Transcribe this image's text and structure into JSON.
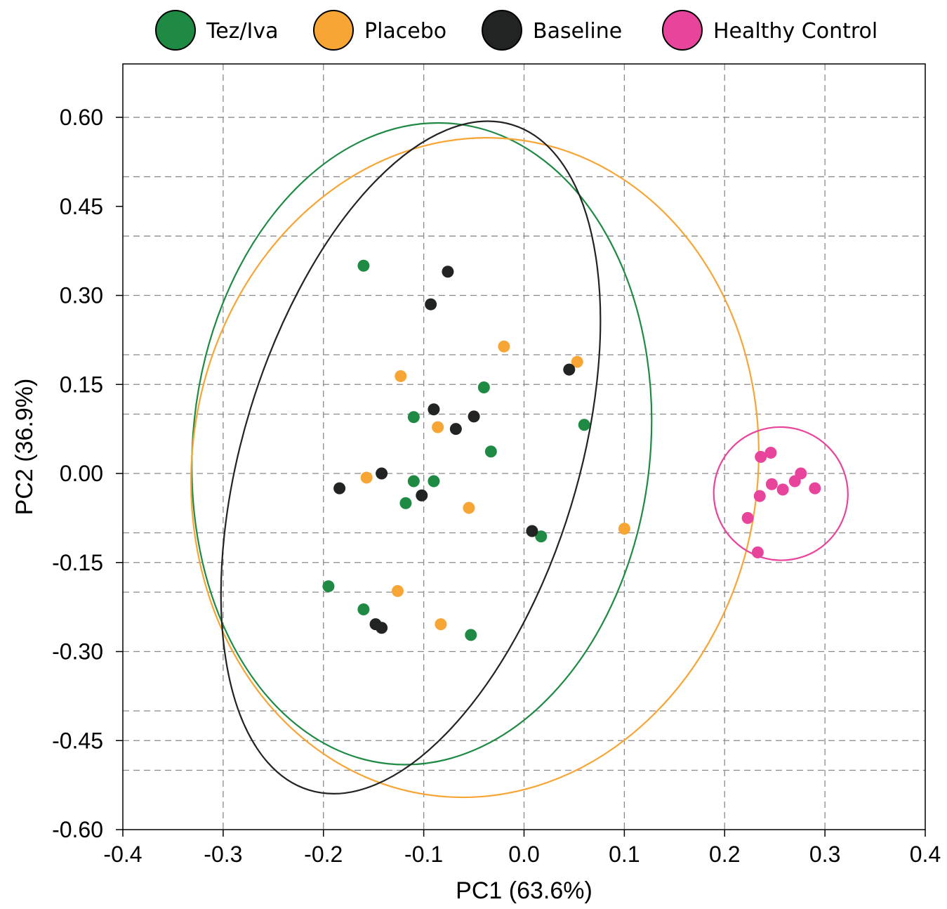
{
  "chart_data": {
    "type": "scatter",
    "xlabel": "PC1 (63.6%)",
    "ylabel": "PC2 (36.9%)",
    "xlim": [
      -0.4,
      0.4
    ],
    "ylim": [
      -0.6,
      0.6
    ],
    "x_ticks": [
      -0.4,
      -0.3,
      -0.2,
      -0.1,
      0.0,
      0.1,
      0.2,
      0.3,
      0.4
    ],
    "x_tick_labels": [
      "-0.4",
      "-0.3",
      "-0.2",
      "-0.1",
      "0.0",
      "0.1",
      "0.2",
      "0.3",
      "0.4"
    ],
    "y_ticks": [
      0.6,
      0.45,
      0.3,
      0.15,
      0.0,
      -0.15,
      -0.3,
      -0.45,
      -0.6
    ],
    "y_tick_labels": [
      "0.60",
      "0.45",
      "0.30",
      "0.15",
      "0.00",
      "-0.15",
      "-0.30",
      "-0.45",
      "-0.60"
    ],
    "x_grid": [
      -0.3,
      -0.2,
      -0.1,
      0.0,
      0.1,
      0.2,
      0.3
    ],
    "y_grid": [
      0.6,
      0.5,
      0.4,
      0.3,
      0.2,
      0.15,
      0.1,
      0.0,
      -0.1,
      -0.15,
      -0.2,
      -0.3,
      -0.4,
      -0.45,
      -0.5
    ],
    "grid": true,
    "legend_position": "top",
    "series": [
      {
        "name": "Tez/Iva",
        "color": "#1e8a44",
        "points": [
          [
            -0.16,
            0.35
          ],
          [
            -0.04,
            0.145
          ],
          [
            -0.11,
            0.095
          ],
          [
            0.06,
            0.082
          ],
          [
            -0.033,
            0.037
          ],
          [
            -0.11,
            -0.013
          ],
          [
            -0.09,
            -0.013
          ],
          [
            -0.118,
            -0.05
          ],
          [
            0.017,
            -0.106
          ],
          [
            -0.195,
            -0.19
          ],
          [
            -0.16,
            -0.229
          ],
          [
            -0.053,
            -0.272
          ]
        ],
        "ellipse": {
          "center": [
            -0.102,
            0.05
          ],
          "rx": 0.228,
          "ry": 0.542,
          "angle_deg": 6
        }
      },
      {
        "name": "Placebo",
        "color": "#f7a535",
        "points": [
          [
            -0.02,
            0.214
          ],
          [
            0.053,
            0.188
          ],
          [
            -0.123,
            0.164
          ],
          [
            -0.086,
            0.078
          ],
          [
            -0.157,
            -0.007
          ],
          [
            -0.055,
            -0.058
          ],
          [
            0.1,
            -0.093
          ],
          [
            -0.126,
            -0.198
          ],
          [
            -0.083,
            -0.254
          ]
        ],
        "ellipse": {
          "center": [
            -0.049,
            0.01
          ],
          "rx": 0.282,
          "ry": 0.557,
          "angle_deg": 8
        }
      },
      {
        "name": "Baseline",
        "color": "#222323",
        "points": [
          [
            -0.076,
            0.34
          ],
          [
            -0.093,
            0.285
          ],
          [
            0.045,
            0.175
          ],
          [
            -0.09,
            0.108
          ],
          [
            -0.05,
            0.096
          ],
          [
            -0.068,
            0.075
          ],
          [
            -0.142,
            0.0
          ],
          [
            -0.184,
            -0.025
          ],
          [
            -0.102,
            -0.037
          ],
          [
            0.008,
            -0.097
          ],
          [
            -0.148,
            -0.254
          ],
          [
            -0.142,
            -0.26
          ]
        ],
        "ellipse": {
          "center": [
            -0.113,
            0.027
          ],
          "rx": 0.167,
          "ry": 0.586,
          "angle_deg": 17
        }
      },
      {
        "name": "Healthy Control",
        "color": "#e9449b",
        "points": [
          [
            0.246,
            0.035
          ],
          [
            0.236,
            0.028
          ],
          [
            0.276,
            0.0
          ],
          [
            0.27,
            -0.013
          ],
          [
            0.247,
            -0.018
          ],
          [
            0.258,
            -0.027
          ],
          [
            0.29,
            -0.025
          ],
          [
            0.235,
            -0.038
          ],
          [
            0.223,
            -0.075
          ],
          [
            0.233,
            -0.133
          ]
        ],
        "ellipse": {
          "center": [
            0.256,
            -0.034
          ],
          "rx": 0.067,
          "ry": 0.112,
          "angle_deg": 24
        }
      }
    ]
  }
}
